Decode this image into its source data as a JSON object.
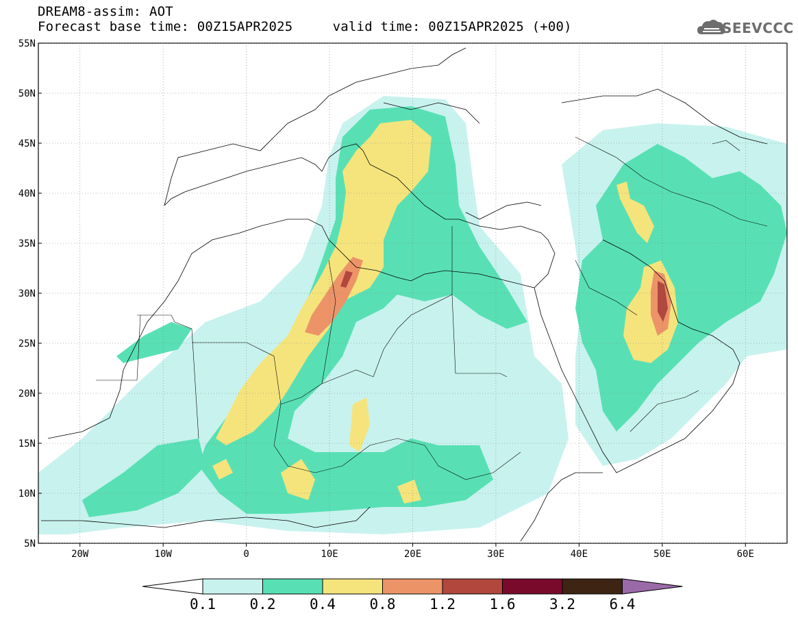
{
  "header": {
    "title_line1": "DREAM8-assim: AOT",
    "title_line2": "Forecast base time: 00Z15APR2025     valid time: 00Z15APR2025 (+00)"
  },
  "logo": {
    "text": "SEEVCCC",
    "icon": "cloud-logo-icon"
  },
  "map": {
    "lon_ticks": [
      "20W",
      "10W",
      "0",
      "10E",
      "20E",
      "30E",
      "40E",
      "50E",
      "60E"
    ],
    "lat_ticks": [
      "55N",
      "50N",
      "45N",
      "40N",
      "35N",
      "30N",
      "25N",
      "20N",
      "15N",
      "10N",
      "5N"
    ],
    "lon_range": [
      -25,
      65
    ],
    "lat_range": [
      5,
      55
    ]
  },
  "colorbar": {
    "levels": [
      "0.1",
      "0.2",
      "0.4",
      "0.8",
      "1.2",
      "1.6",
      "3.2",
      "6.4"
    ],
    "colors": [
      "#ffffff",
      "#c8f2ee",
      "#58e0b4",
      "#f5e47c",
      "#ec9468",
      "#b2473e",
      "#7a0a2c",
      "#3e2412",
      "#9a6aa8"
    ]
  }
}
